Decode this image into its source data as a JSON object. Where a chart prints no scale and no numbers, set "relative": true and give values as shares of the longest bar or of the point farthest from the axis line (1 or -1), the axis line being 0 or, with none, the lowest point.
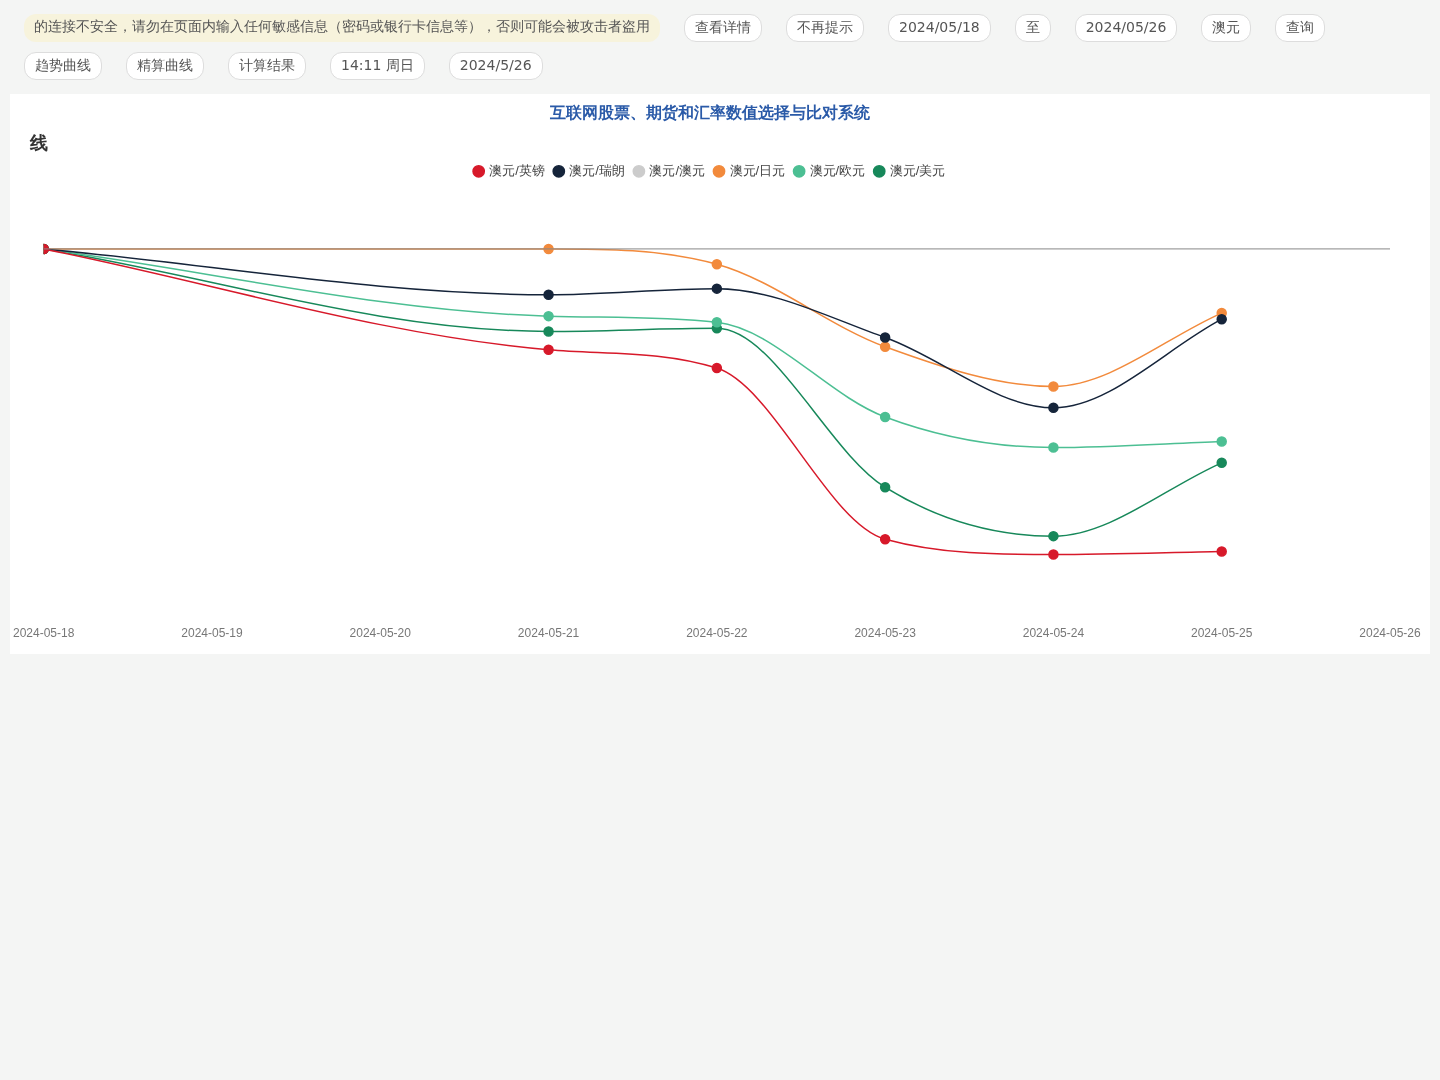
{
  "chart_data": {
    "type": "line",
    "title": "互联网股票、期货和汇率数值选择与比对系统",
    "subtitle": "线",
    "relative": true,
    "marker": "circle",
    "legend": "top",
    "xlim": [
      "2024-05-18",
      "2024-05-26"
    ],
    "xticks": [
      "2024-05-18",
      "2024-05-19",
      "2024-05-20",
      "2024-05-21",
      "2024-05-22",
      "2024-05-23",
      "2024-05-24",
      "2024-05-25",
      "2024-05-26"
    ],
    "x": [
      "2024-05-18",
      "2024-05-21",
      "2024-05-22",
      "2024-05-23",
      "2024-05-24",
      "2024-05-25"
    ],
    "series": [
      {
        "name": "澳元/英镑",
        "color": "#d7192a",
        "values": [
          0,
          -0.33,
          -0.39,
          -0.95,
          -1,
          -0.99
        ]
      },
      {
        "name": "澳元/瑞朗",
        "color": "#15243a",
        "values": [
          0,
          -0.15,
          -0.13,
          -0.29,
          -0.52,
          -0.23
        ]
      },
      {
        "name": "澳元/澳元",
        "color": "#cccccc",
        "values": [
          null,
          null,
          null,
          null,
          null,
          null
        ]
      },
      {
        "name": "澳元/日元",
        "color": "#f28a3c",
        "values": [
          0,
          0,
          -0.05,
          -0.32,
          -0.45,
          -0.21
        ]
      },
      {
        "name": "澳元/欧元",
        "color": "#4cbf93",
        "values": [
          0,
          -0.22,
          -0.24,
          -0.55,
          -0.65,
          -0.63
        ]
      },
      {
        "name": "澳元/美元",
        "color": "#17885a",
        "values": [
          0,
          -0.27,
          -0.26,
          -0.78,
          -0.94,
          -0.7
        ]
      }
    ],
    "annotations": [
      "的连接不安全，请勿在页面内输入任何敏感信息（密码或银行卡信息等），否则可能会被攻击者盗用",
      "查看详情",
      "不再提示",
      "2024/05/18",
      "至",
      "2024/05/26",
      "澳元",
      "查询",
      "趋势曲线",
      "精算曲线",
      "计算结果",
      "14:11 周日",
      "2024/5/26"
    ]
  }
}
